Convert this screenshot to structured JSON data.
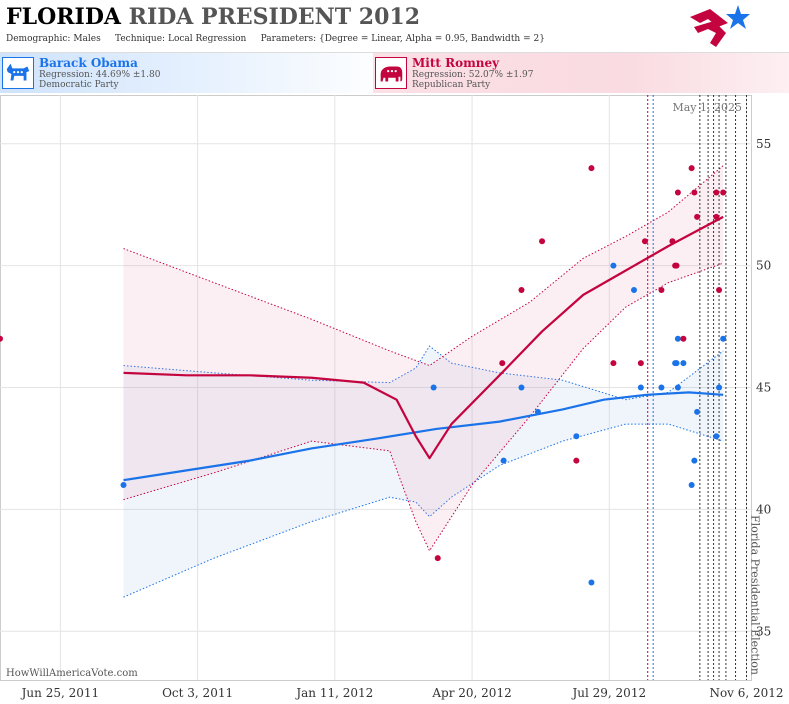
{
  "header": {
    "title_part1": "FLORIDA",
    "title_part2": "RIDA PRESIDENT 2012",
    "demographic_label": "Demographic:",
    "demographic_value": "Males",
    "technique_label": "Technique:",
    "technique_value": "Local Regression",
    "parameters_label": "Parameters:",
    "parameters_value": "{Degree = Linear, Alpha = 0.95, Bandwidth = 2}"
  },
  "candidates": {
    "dem": {
      "name": "Barack Obama",
      "regression": "Regression: 44.69% ±1.80",
      "party": "Democratic Party",
      "icon": "donkey-icon",
      "color": "#1a73e8"
    },
    "rep": {
      "name": "Mitt Romney",
      "regression": "Regression: 52.07% ±1.97",
      "party": "Republican Party",
      "icon": "elephant-icon",
      "color": "#c4043f"
    }
  },
  "source": "HowWillAmericaVote.com",
  "chart_data": {
    "type": "scatter",
    "x_axis": {
      "type": "date",
      "range": [
        "2011-05-12",
        "2012-11-10"
      ],
      "ticks": [
        "2011-06-25",
        "2011-10-03",
        "2012-01-11",
        "2012-04-20",
        "2012-07-29",
        "2012-11-06"
      ],
      "tick_labels": [
        "Jun 25, 2011",
        "Oct 3, 2011",
        "Jan 11, 2012",
        "Apr 20, 2012",
        "Jul 29, 2012",
        "Nov 6, 2012"
      ]
    },
    "y_axis": {
      "range": [
        33,
        57
      ],
      "ticks": [
        35,
        40,
        45,
        50,
        55
      ],
      "position": "right"
    },
    "grid": true,
    "annotations": {
      "today_label": "May 1, 2025",
      "election_label": "Florida Presidential Election",
      "election_date": "2012-11-06"
    },
    "series": [
      {
        "name": "Barack Obama",
        "color": "#1a73e8",
        "points": [
          [
            "2011-08-10",
            41
          ],
          [
            "2012-03-23",
            45
          ],
          [
            "2012-05-13",
            42
          ],
          [
            "2012-05-26",
            45
          ],
          [
            "2012-06-07",
            44
          ],
          [
            "2012-07-05",
            43
          ],
          [
            "2012-07-16",
            37
          ],
          [
            "2012-08-01",
            50
          ],
          [
            "2012-08-16",
            49
          ],
          [
            "2012-08-21",
            45
          ],
          [
            "2012-09-05",
            45
          ],
          [
            "2012-09-15",
            46
          ],
          [
            "2012-09-16",
            46
          ],
          [
            "2012-09-17",
            47
          ],
          [
            "2012-09-17",
            45
          ],
          [
            "2012-09-21",
            46
          ],
          [
            "2012-09-27",
            41
          ],
          [
            "2012-09-29",
            42
          ],
          [
            "2012-10-01",
            44
          ],
          [
            "2012-10-15",
            43
          ],
          [
            "2012-10-17",
            45
          ],
          [
            "2012-10-20",
            47
          ]
        ],
        "trend": [
          [
            "2011-08-10",
            41.2
          ],
          [
            "2011-09-25",
            41.6
          ],
          [
            "2011-11-10",
            42.0
          ],
          [
            "2011-12-25",
            42.5
          ],
          [
            "2012-02-10",
            42.9
          ],
          [
            "2012-03-25",
            43.3
          ],
          [
            "2012-05-10",
            43.6
          ],
          [
            "2012-06-25",
            44.1
          ],
          [
            "2012-07-25",
            44.5
          ],
          [
            "2012-08-25",
            44.7
          ],
          [
            "2012-09-25",
            44.8
          ],
          [
            "2012-10-20",
            44.7
          ]
        ],
        "band_upper": [
          [
            "2011-08-10",
            45.9
          ],
          [
            "2011-10-15",
            45.6
          ],
          [
            "2011-12-25",
            45.3
          ],
          [
            "2012-02-20",
            45.2
          ],
          [
            "2012-03-10",
            45.8
          ],
          [
            "2012-03-20",
            46.7
          ],
          [
            "2012-04-05",
            46.0
          ],
          [
            "2012-05-10",
            45.6
          ],
          [
            "2012-06-25",
            45.3
          ],
          [
            "2012-08-10",
            44.5
          ],
          [
            "2012-09-10",
            44.8
          ],
          [
            "2012-10-20",
            46.5
          ]
        ],
        "band_lower": [
          [
            "2011-08-10",
            36.4
          ],
          [
            "2011-10-15",
            38.0
          ],
          [
            "2011-12-25",
            39.5
          ],
          [
            "2012-02-20",
            40.5
          ],
          [
            "2012-03-10",
            40.3
          ],
          [
            "2012-03-20",
            39.7
          ],
          [
            "2012-04-05",
            40.5
          ],
          [
            "2012-05-10",
            41.8
          ],
          [
            "2012-06-25",
            42.8
          ],
          [
            "2012-08-10",
            43.5
          ],
          [
            "2012-09-10",
            43.5
          ],
          [
            "2012-10-20",
            42.8
          ]
        ]
      },
      {
        "name": "Mitt Romney",
        "color": "#c4043f",
        "points": [
          [
            "2011-05-12",
            47
          ],
          [
            "2012-03-26",
            38
          ],
          [
            "2012-05-12",
            46
          ],
          [
            "2012-05-26",
            49
          ],
          [
            "2012-06-10",
            51
          ],
          [
            "2012-07-05",
            42
          ],
          [
            "2012-07-16",
            54
          ],
          [
            "2012-08-01",
            46
          ],
          [
            "2012-08-21",
            46
          ],
          [
            "2012-08-24",
            51
          ],
          [
            "2012-09-05",
            49
          ],
          [
            "2012-09-13",
            51
          ],
          [
            "2012-09-15",
            50
          ],
          [
            "2012-09-16",
            50
          ],
          [
            "2012-09-17",
            53
          ],
          [
            "2012-09-21",
            47
          ],
          [
            "2012-09-27",
            54
          ],
          [
            "2012-09-29",
            53
          ],
          [
            "2012-10-01",
            52
          ],
          [
            "2012-10-15",
            53
          ],
          [
            "2012-10-15",
            52
          ],
          [
            "2012-10-17",
            49
          ],
          [
            "2012-10-20",
            53
          ]
        ],
        "trend": [
          [
            "2011-08-10",
            45.6
          ],
          [
            "2011-09-25",
            45.5
          ],
          [
            "2011-11-10",
            45.5
          ],
          [
            "2011-12-25",
            45.4
          ],
          [
            "2012-02-01",
            45.2
          ],
          [
            "2012-02-25",
            44.5
          ],
          [
            "2012-03-10",
            43.0
          ],
          [
            "2012-03-20",
            42.1
          ],
          [
            "2012-04-05",
            43.5
          ],
          [
            "2012-05-10",
            45.5
          ],
          [
            "2012-06-10",
            47.3
          ],
          [
            "2012-07-10",
            48.8
          ],
          [
            "2012-08-10",
            49.8
          ],
          [
            "2012-09-10",
            50.8
          ],
          [
            "2012-10-20",
            52.0
          ]
        ],
        "band_upper": [
          [
            "2011-08-10",
            50.7
          ],
          [
            "2011-10-15",
            49.3
          ],
          [
            "2011-12-25",
            47.8
          ],
          [
            "2012-02-20",
            46.5
          ],
          [
            "2012-03-20",
            45.9
          ],
          [
            "2012-04-20",
            47.1
          ],
          [
            "2012-06-01",
            48.5
          ],
          [
            "2012-07-10",
            50.3
          ],
          [
            "2012-08-10",
            51.2
          ],
          [
            "2012-09-10",
            52.2
          ],
          [
            "2012-10-20",
            54.1
          ]
        ],
        "band_lower": [
          [
            "2011-08-10",
            40.4
          ],
          [
            "2011-10-15",
            41.5
          ],
          [
            "2011-12-25",
            42.8
          ],
          [
            "2012-02-20",
            42.4
          ],
          [
            "2012-03-10",
            39.5
          ],
          [
            "2012-03-20",
            38.3
          ],
          [
            "2012-04-20",
            41.0
          ],
          [
            "2012-06-01",
            43.8
          ],
          [
            "2012-07-10",
            46.6
          ],
          [
            "2012-08-10",
            48.3
          ],
          [
            "2012-09-10",
            49.3
          ],
          [
            "2012-10-20",
            50.1
          ]
        ]
      }
    ],
    "vlines": [
      {
        "date": "2012-08-26",
        "color": "#c4043f"
      },
      {
        "date": "2012-08-30",
        "color": "#1a73e8"
      },
      {
        "date": "2012-10-03",
        "color": "#333333"
      },
      {
        "date": "2012-10-09",
        "color": "#333333"
      },
      {
        "date": "2012-10-13",
        "color": "#333333"
      },
      {
        "date": "2012-10-17",
        "color": "#333333"
      },
      {
        "date": "2012-10-22",
        "color": "#333333"
      },
      {
        "date": "2012-10-29",
        "color": "#333333"
      },
      {
        "date": "2012-11-06",
        "color": "#333333"
      }
    ]
  }
}
